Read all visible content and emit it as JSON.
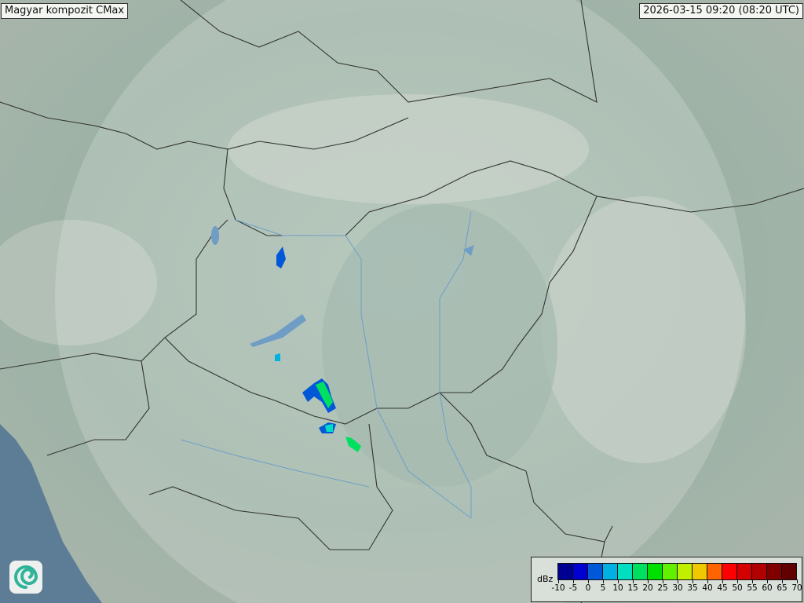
{
  "header": {
    "title": "Magyar kompozit  CMax",
    "timestamp": "2026-03-15 09:20 (08:20 UTC)"
  },
  "map": {
    "region": "Carpathian Basin",
    "layers": [
      "terrain",
      "country-borders",
      "rivers",
      "lakes",
      "radar-coverage",
      "radar-echoes"
    ]
  },
  "legend": {
    "unit": "dBz",
    "ticks": [
      "-10",
      "-5",
      "0",
      "5",
      "10",
      "15",
      "20",
      "25",
      "30",
      "35",
      "40",
      "45",
      "50",
      "55",
      "60",
      "65",
      "70"
    ],
    "colors": [
      "#000090",
      "#0000d0",
      "#0058d8",
      "#00b0e0",
      "#00e0c0",
      "#00e060",
      "#00e000",
      "#60f000",
      "#c0f000",
      "#f0c800",
      "#ff6400",
      "#ff0000",
      "#d40000",
      "#b00000",
      "#800000",
      "#600000"
    ]
  },
  "logo": {
    "name": "swirl-logo"
  }
}
